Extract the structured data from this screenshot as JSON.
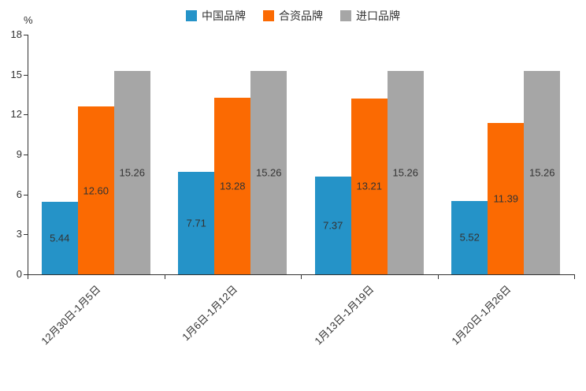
{
  "chart_data": {
    "type": "bar",
    "unit_label": "%",
    "categories": [
      "12月30日-1月5日",
      "1月6日-1月12日",
      "1月13日-1月19日",
      "1月20日-1月26日"
    ],
    "series": [
      {
        "name": "中国品牌",
        "color": "#2593c8",
        "values": [
          5.44,
          7.71,
          7.37,
          5.52
        ]
      },
      {
        "name": "合资品牌",
        "color": "#fb6a02",
        "values": [
          12.6,
          13.28,
          13.21,
          11.39
        ]
      },
      {
        "name": "进口品牌",
        "color": "#a6a6a6",
        "values": [
          15.26,
          15.26,
          15.26,
          15.26
        ]
      }
    ],
    "ylim": [
      0,
      18
    ],
    "ytick_step": 3,
    "label_decimals": 2,
    "legend_position": "top",
    "grid": false,
    "axis_color": "#333333",
    "label_color": "#333333"
  }
}
